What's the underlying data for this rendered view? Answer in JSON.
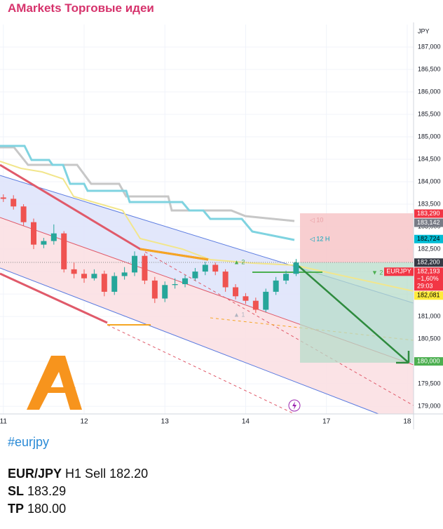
{
  "header": {
    "title": "AMarkets Торговые идеи"
  },
  "chart_data": {
    "type": "candlestick",
    "y_axis_label": "JPY",
    "x": [
      0,
      3,
      6,
      9,
      12,
      15,
      18,
      21,
      24,
      27,
      30,
      33,
      36,
      39,
      42,
      45,
      48,
      51,
      54,
      57,
      60,
      63,
      66,
      69,
      72,
      75,
      78,
      81,
      84,
      87
    ],
    "open": [
      183.65,
      183.62,
      183.45,
      183.1,
      182.6,
      182.68,
      182.85,
      182.05,
      181.95,
      181.85,
      181.95,
      181.55,
      181.9,
      181.98,
      182.35,
      181.8,
      181.4,
      181.7,
      181.72,
      181.85,
      182.0,
      182.15,
      182.0,
      181.65,
      181.45,
      181.35,
      181.15,
      181.55,
      181.8,
      181.95
    ],
    "high": [
      183.72,
      183.7,
      183.5,
      183.18,
      182.75,
      183.05,
      182.9,
      182.2,
      182.05,
      182.05,
      182.02,
      181.98,
      182.1,
      182.45,
      182.4,
      181.88,
      181.78,
      181.85,
      181.92,
      182.08,
      182.22,
      182.2,
      182.05,
      181.72,
      181.52,
      181.42,
      181.62,
      181.88,
      182.02,
      182.28
    ],
    "low": [
      183.55,
      183.38,
      183.02,
      182.5,
      182.52,
      182.6,
      181.98,
      181.85,
      181.75,
      181.8,
      181.45,
      181.48,
      181.82,
      181.9,
      181.72,
      181.3,
      181.32,
      181.62,
      181.65,
      181.8,
      181.92,
      181.92,
      181.55,
      181.38,
      181.28,
      181.08,
      181.1,
      181.48,
      181.72,
      181.9
    ],
    "close": [
      183.62,
      183.45,
      183.1,
      182.6,
      182.68,
      182.85,
      182.05,
      181.95,
      181.85,
      181.95,
      181.55,
      181.9,
      181.98,
      182.35,
      181.8,
      181.4,
      181.7,
      181.72,
      181.85,
      182.0,
      182.15,
      182.0,
      181.65,
      181.45,
      181.35,
      181.15,
      181.55,
      181.8,
      181.95,
      182.2
    ],
    "up_color": "#26a69a",
    "down_color": "#ef5350",
    "xlim": [
      -1,
      121.9
    ],
    "xticks": [
      {
        "value": 0,
        "label": "11"
      },
      {
        "value": 24,
        "label": "12"
      },
      {
        "value": 48,
        "label": "13"
      },
      {
        "value": 72,
        "label": "14"
      },
      {
        "value": 96,
        "label": "17"
      },
      {
        "value": 120,
        "label": "18"
      }
    ],
    "ylim": [
      178.83,
      187.5
    ],
    "yticks": [
      {
        "value": 179,
        "label": "179,000"
      },
      {
        "value": 179.5,
        "label": "179,500"
      },
      {
        "value": 180,
        "label": "180,000"
      },
      {
        "value": 180.5,
        "label": "180,500"
      },
      {
        "value": 181,
        "label": "181,000"
      },
      {
        "value": 181.5,
        "label": "181,500"
      },
      {
        "value": 182,
        "label": "182,000"
      },
      {
        "value": 182.5,
        "label": "182,500"
      },
      {
        "value": 183,
        "label": "183,000"
      },
      {
        "value": 183.5,
        "label": "183,500"
      },
      {
        "value": 184,
        "label": "184,000"
      },
      {
        "value": 184.5,
        "label": "184,500"
      },
      {
        "value": 185,
        "label": "185,000"
      },
      {
        "value": 185.5,
        "label": "185,500"
      },
      {
        "value": 186,
        "label": "186,000"
      },
      {
        "value": 186.5,
        "label": "186,500"
      },
      {
        "value": 187,
        "label": "187,000"
      }
    ],
    "grid": true,
    "price_labels": [
      {
        "value": 183.29,
        "label": "183,290",
        "color": "#f23645",
        "text_color": "#ffffff"
      },
      {
        "value": 183.142,
        "label": "183,142",
        "color": "#787b86",
        "text_color": "#ffffff"
      },
      {
        "value": 182.724,
        "label": "182,724",
        "color": "#00bcd4",
        "text_color": "#000000"
      },
      {
        "value": 182.2,
        "label": "182,200",
        "color": "#363a45",
        "text_color": "#ffffff"
      },
      {
        "value": 182.193,
        "label": "182,193",
        "color": "#f23645",
        "text_color": "#ffffff",
        "symbol": "EURJPY",
        "change": "−1,60%",
        "countdown": "29:03"
      },
      {
        "value": 182.081,
        "label": "182,081",
        "color": "#ffeb3b",
        "text_color": "#000000"
      },
      {
        "value": 180,
        "label": "180,000",
        "color": "#4caf50",
        "text_color": "#ffffff"
      }
    ],
    "annotations": [
      "◁ 10",
      "◁ 12 H",
      "▲ 2",
      "▼ 2",
      "▲ 1"
    ]
  },
  "post": {
    "hashtag": "#eurjpy",
    "lines": [
      {
        "bold": "EUR/JPY",
        "text": "H1 Sell 182.20"
      },
      {
        "bold": "SL",
        "text": "183.29"
      },
      {
        "bold": "TP",
        "text": "180.00"
      }
    ]
  }
}
